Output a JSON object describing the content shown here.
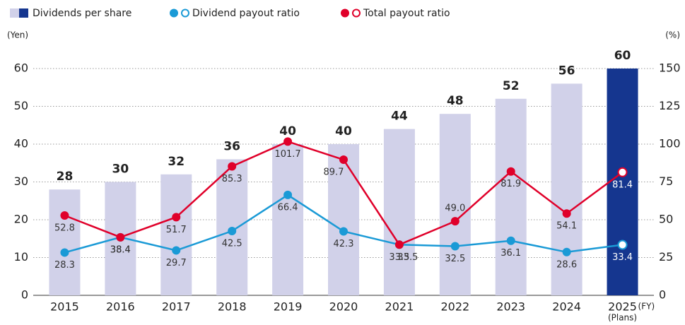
{
  "chart_data": {
    "type": "bar_line",
    "y_label": "(Yen)",
    "y2_label": "(%)",
    "x_unit": "(FY)",
    "x_note": "(Plans)",
    "categories": [
      "2015",
      "2016",
      "2017",
      "2018",
      "2019",
      "2020",
      "2021",
      "2022",
      "2023",
      "2024",
      "2025"
    ],
    "series": [
      {
        "name": "Dividends per share",
        "type": "bar",
        "color": "#d1d1e9",
        "plan_color": "#15368f",
        "values": [
          28,
          30,
          32,
          36,
          40,
          40,
          44,
          48,
          52,
          56,
          60
        ]
      },
      {
        "name": "Dividend payout ratio",
        "type": "line",
        "axis": "y2",
        "color": "#1a9ad6",
        "values": [
          28.3,
          38.4,
          29.7,
          42.5,
          66.4,
          42.3,
          33.5,
          32.5,
          36.1,
          28.6,
          33.4
        ]
      },
      {
        "name": "Total payout ratio",
        "type": "line",
        "axis": "y2",
        "color": "#e0002a",
        "values": [
          52.8,
          38.4,
          51.7,
          85.3,
          101.7,
          89.7,
          33.5,
          49.0,
          81.9,
          54.1,
          81.4
        ],
        "value_labels": [
          "52.8",
          "38.4",
          "51.7",
          "85.3",
          "101.7",
          "89.7",
          "33.5",
          "49.0",
          "81.9",
          "54.1",
          "81.4"
        ]
      }
    ],
    "ylim": [
      0,
      60
    ],
    "yticks": [
      0,
      10,
      20,
      30,
      40,
      50,
      60
    ],
    "y2lim": [
      0,
      150
    ],
    "y2ticks": [
      0,
      25,
      50,
      75,
      100,
      125,
      150
    ],
    "grid": true
  }
}
